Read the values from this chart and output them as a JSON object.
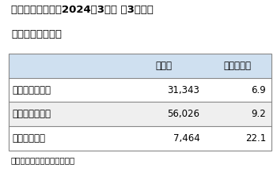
{
  "title_line1": "ゴールドウイン、2024年3月期 第3四半期",
  "title_line2": "事業区分別売上高",
  "header_col2": "売上高",
  "header_col3": "（増減率）",
  "rows": [
    {
      "label": "パフォーマンス",
      "value": "31,343",
      "rate": "6.9"
    },
    {
      "label": "ライフスタイル",
      "value": "56,026",
      "rate": "9.2"
    },
    {
      "label": "ファッション",
      "value": "7,464",
      "rate": "22.1"
    }
  ],
  "footnote": "単位は百万円。増減率は％。",
  "header_bg": "#cfe0f0",
  "row_bg_alt": "#efefef",
  "row_bg_normal": "#ffffff",
  "border_color": "#888888",
  "title_fontsize": 9.5,
  "header_fontsize": 8.5,
  "cell_fontsize": 8.5,
  "footnote_fontsize": 7.5
}
